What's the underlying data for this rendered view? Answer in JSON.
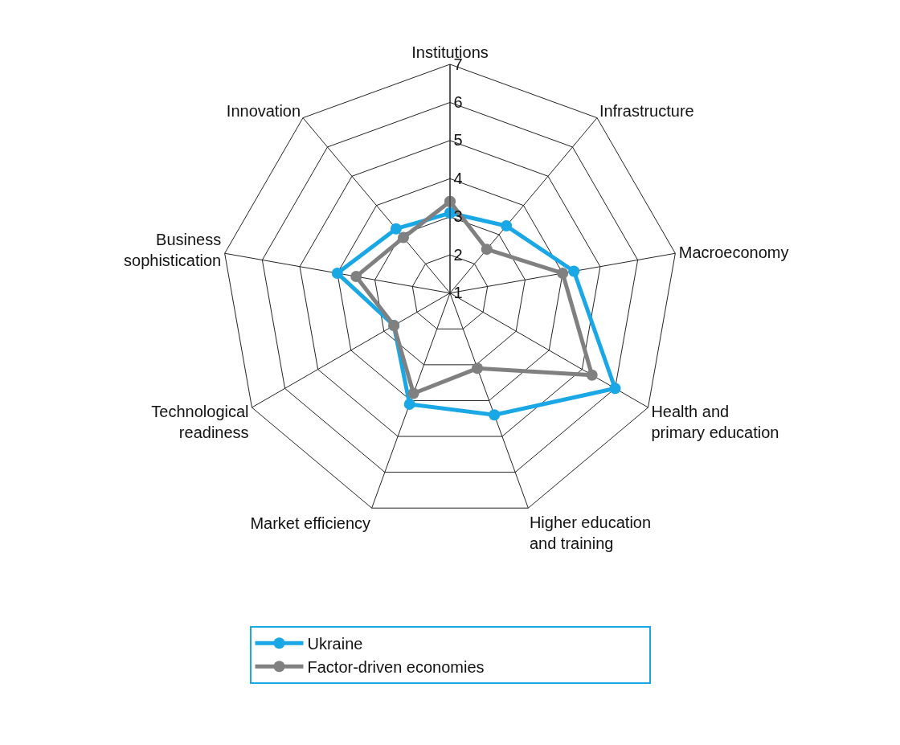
{
  "chart_data": {
    "type": "radar",
    "categories": [
      "Institutions",
      "Infrastructure",
      "Macroeconomy",
      "Health and\nprimary education",
      "Higher education\nand training",
      "Market efficiency",
      "Technological\nreadiness",
      "Business\nsophistication",
      "Innovation"
    ],
    "series": [
      {
        "name": "Ukraine",
        "color": "#1aa7e6",
        "values": [
          3.1,
          3.3,
          4.3,
          6.0,
          4.4,
          4.1,
          2.7,
          4.0,
          3.2
        ]
      },
      {
        "name": "Factor-driven economies",
        "color": "#808080",
        "values": [
          3.4,
          2.5,
          4.0,
          5.3,
          3.1,
          3.8,
          2.7,
          3.5,
          2.9
        ]
      }
    ],
    "ylim": [
      1,
      7
    ],
    "yticks": [
      1,
      2,
      3,
      4,
      5,
      6,
      7
    ],
    "grid": true,
    "legend": "bottom",
    "marker": "circle",
    "line_style": "solid"
  }
}
